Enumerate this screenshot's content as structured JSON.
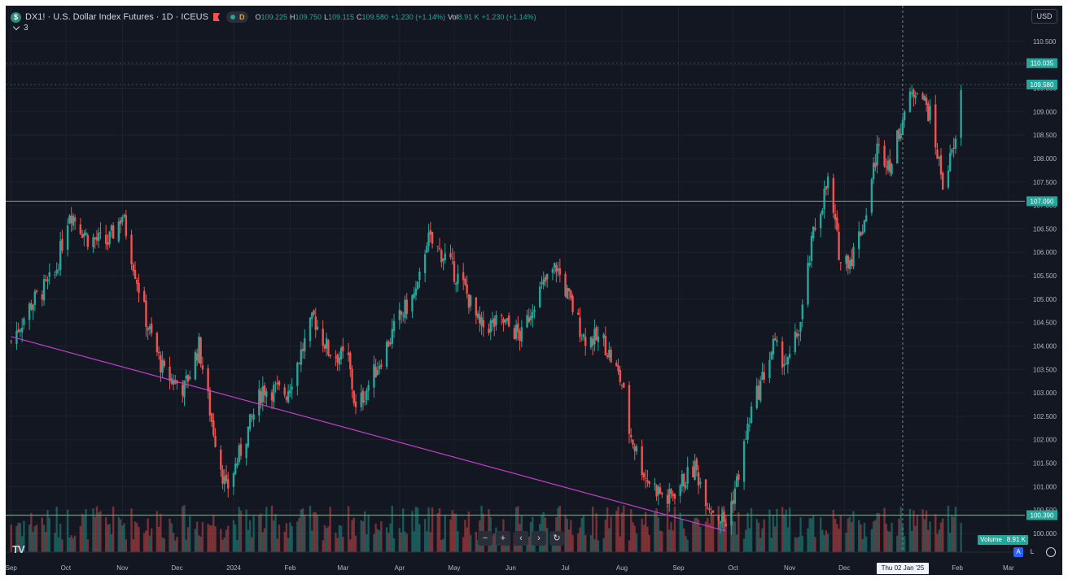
{
  "chart": {
    "symbol_icon": "$",
    "title": "DX1! · U.S. Dollar Index Futures · 1D · ICEUS",
    "interval_badge": "D",
    "ohlc": [
      {
        "label": "O",
        "value": "109.225"
      },
      {
        "label": "H",
        "value": "109.750"
      },
      {
        "label": "L",
        "value": "109.115"
      },
      {
        "label": "C",
        "value": "109.580"
      },
      {
        "label": "",
        "value": "+1.230 (+1.14%)"
      },
      {
        "label": "Vol",
        "value": "8.91 K"
      },
      {
        "label": "",
        "value": "+1.230 (+1.14%)"
      }
    ],
    "collapse_count": "3",
    "currency": "USD",
    "nav_buttons": [
      "−",
      "+",
      "‹",
      "›",
      "↻"
    ],
    "volume_badge": {
      "label": "Volume",
      "value": "8.91 K"
    },
    "scale_buttons": {
      "auto": "A",
      "log": "L"
    },
    "crosshair_date": "Thu 02 Jan '25",
    "logo": "TV"
  },
  "colors": {
    "background": "#131722",
    "up": "#26a69a",
    "down": "#ef5350",
    "level_line": "#4caf50",
    "trend_line": "#c040c8",
    "grid": "#1e222d",
    "text": "#b2b5be"
  },
  "chart_data": {
    "type": "candlestick",
    "symbol": "DX1!",
    "interval": "1D",
    "y_axis": {
      "ticks": [
        "110.500",
        "110.000",
        "109.500",
        "109.000",
        "108.500",
        "108.000",
        "107.500",
        "107.000",
        "106.500",
        "106.000",
        "105.500",
        "105.000",
        "104.500",
        "104.000",
        "103.500",
        "103.000",
        "102.500",
        "102.000",
        "101.500",
        "101.000",
        "100.500",
        "100.000"
      ],
      "range": [
        99.6,
        110.95
      ]
    },
    "x_axis": {
      "ticks": [
        "Sep",
        "Oct",
        "Nov",
        "Dec",
        "2024",
        "Feb",
        "Mar",
        "Apr",
        "May",
        "Jun",
        "Jul",
        "Aug",
        "Sep",
        "Oct",
        "Nov",
        "Dec",
        "Feb",
        "Mar"
      ]
    },
    "price_labels": [
      {
        "value": "110.035",
        "price": 110.035
      },
      {
        "value": "109.580",
        "price": 109.58
      },
      {
        "value": "107.090",
        "price": 107.09
      },
      {
        "value": "100.390",
        "price": 100.39
      }
    ],
    "levels": [
      110.035,
      109.58,
      107.09,
      100.39
    ],
    "trendline": {
      "from": {
        "date": "2023-09-01",
        "price": 104.2
      },
      "to": {
        "date": "2024-09-27",
        "price": 100.05
      }
    },
    "close_anchors": [
      [
        "2023-09-01",
        104.1
      ],
      [
        "2023-09-12",
        104.9
      ],
      [
        "2023-09-25",
        105.5
      ],
      [
        "2023-10-03",
        106.9
      ],
      [
        "2023-10-13",
        106.3
      ],
      [
        "2023-10-24",
        106.2
      ],
      [
        "2023-11-01",
        106.8
      ],
      [
        "2023-11-08",
        105.6
      ],
      [
        "2023-11-15",
        104.4
      ],
      [
        "2023-11-24",
        103.4
      ],
      [
        "2023-12-05",
        103.1
      ],
      [
        "2023-12-13",
        104.0
      ],
      [
        "2023-12-20",
        102.4
      ],
      [
        "2023-12-28",
        100.9
      ],
      [
        "2024-01-08",
        102.1
      ],
      [
        "2024-01-17",
        103.1
      ],
      [
        "2024-01-30",
        103.0
      ],
      [
        "2024-02-14",
        104.6
      ],
      [
        "2024-02-22",
        103.9
      ],
      [
        "2024-03-04",
        103.7
      ],
      [
        "2024-03-08",
        102.6
      ],
      [
        "2024-03-19",
        103.5
      ],
      [
        "2024-04-01",
        104.6
      ],
      [
        "2024-04-11",
        105.2
      ],
      [
        "2024-04-16",
        106.3
      ],
      [
        "2024-04-26",
        105.9
      ],
      [
        "2024-05-07",
        105.2
      ],
      [
        "2024-05-15",
        104.4
      ],
      [
        "2024-05-28",
        104.5
      ],
      [
        "2024-06-07",
        104.2
      ],
      [
        "2024-06-14",
        105.0
      ],
      [
        "2024-06-26",
        105.7
      ],
      [
        "2024-07-03",
        105.0
      ],
      [
        "2024-07-11",
        104.2
      ],
      [
        "2024-07-22",
        104.1
      ],
      [
        "2024-08-01",
        103.2
      ],
      [
        "2024-08-05",
        102.2
      ],
      [
        "2024-08-14",
        101.2
      ],
      [
        "2024-08-26",
        100.7
      ],
      [
        "2024-09-03",
        101.1
      ],
      [
        "2024-09-10",
        101.4
      ],
      [
        "2024-09-18",
        100.6
      ],
      [
        "2024-09-27",
        100.2
      ],
      [
        "2024-10-03",
        101.1
      ],
      [
        "2024-10-11",
        102.6
      ],
      [
        "2024-10-23",
        104.0
      ],
      [
        "2024-10-31",
        103.6
      ],
      [
        "2024-11-07",
        104.5
      ],
      [
        "2024-11-14",
        106.4
      ],
      [
        "2024-11-22",
        107.5
      ],
      [
        "2024-11-29",
        105.8
      ],
      [
        "2024-12-05",
        105.9
      ],
      [
        "2024-12-12",
        106.7
      ],
      [
        "2024-12-19",
        108.2
      ],
      [
        "2024-12-27",
        107.9
      ],
      [
        "2025-01-02",
        108.9
      ],
      [
        "2025-01-10",
        109.6
      ],
      [
        "2025-01-17",
        108.9
      ],
      [
        "2025-01-24",
        107.5
      ],
      [
        "2025-01-31",
        108.3
      ],
      [
        "2025-02-03",
        109.58
      ]
    ]
  }
}
